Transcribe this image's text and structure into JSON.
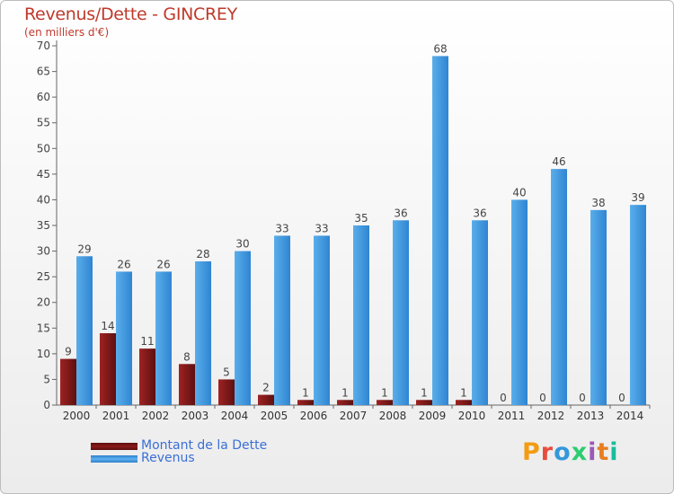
{
  "title": "Revenus/Dette - GINCREY",
  "subtitle": "(en milliers d'€)",
  "legend": {
    "debt_label": "Montant de la Dette",
    "revenue_label": "Revenus"
  },
  "logo_text": "Proxiti",
  "colors": {
    "title": "#c0392b",
    "debt_bar": "#8b1a1a",
    "revenue_bar": "#3f97e0",
    "legend_text": "#3b6fd6",
    "axis": "#666666",
    "grid": "#dddddd"
  },
  "chart_data": {
    "type": "bar",
    "categories": [
      "2000",
      "2001",
      "2002",
      "2003",
      "2004",
      "2005",
      "2006",
      "2007",
      "2008",
      "2009",
      "2010",
      "2011",
      "2012",
      "2013",
      "2014"
    ],
    "series": [
      {
        "name": "Montant de la Dette",
        "values": [
          9,
          14,
          11,
          8,
          5,
          2,
          1,
          1,
          1,
          1,
          1,
          0,
          0,
          0,
          0
        ]
      },
      {
        "name": "Revenus",
        "values": [
          29,
          26,
          26,
          28,
          30,
          33,
          33,
          35,
          36,
          68,
          36,
          40,
          46,
          38,
          39
        ]
      }
    ],
    "ylim": [
      0,
      70
    ],
    "yticks": [
      0,
      5,
      10,
      15,
      20,
      25,
      30,
      35,
      40,
      45,
      50,
      55,
      60,
      65,
      70
    ],
    "grid": false,
    "data_labels": true,
    "legend_position": "bottom-left"
  }
}
